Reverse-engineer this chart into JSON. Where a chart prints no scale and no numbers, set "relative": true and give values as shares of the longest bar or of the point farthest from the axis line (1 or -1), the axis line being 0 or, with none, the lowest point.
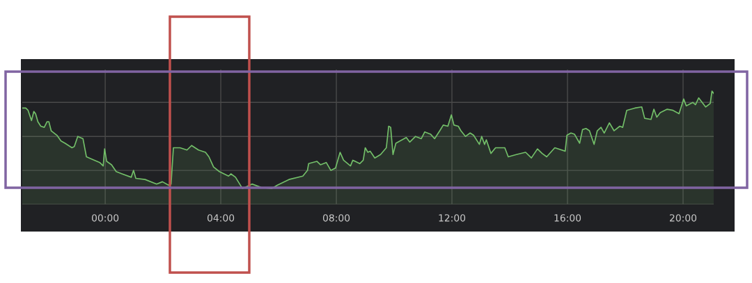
{
  "chart_data": {
    "type": "area",
    "relative": true,
    "grid": true,
    "tick_labels": "x",
    "xlim": [
      -2.87,
      21.06
    ],
    "xticks": [
      {
        "value": 0,
        "label": "00:00"
      },
      {
        "value": 4,
        "label": "04:00"
      },
      {
        "value": 8,
        "label": "08:00"
      },
      {
        "value": 12,
        "label": "12:00"
      },
      {
        "value": 16,
        "label": "16:00"
      },
      {
        "value": 20,
        "label": "20:00"
      }
    ],
    "x": [
      -2.87,
      -2.75,
      -2.67,
      -2.55,
      -2.47,
      -2.41,
      -2.33,
      -2.23,
      -2.11,
      -2.01,
      -1.95,
      -1.87,
      -1.67,
      -1.53,
      -1.39,
      -1.15,
      -1.07,
      -0.95,
      -0.77,
      -0.65,
      -0.47,
      -0.19,
      -0.07,
      -0.02,
      0.05,
      0.22,
      0.38,
      0.58,
      0.9,
      0.98,
      1.06,
      1.38,
      1.78,
      1.98,
      2.19,
      2.28,
      2.36,
      2.59,
      2.83,
      2.99,
      3.23,
      3.47,
      3.59,
      3.75,
      3.95,
      4.27,
      4.35,
      4.51,
      4.75,
      5.08,
      5.4,
      5.76,
      5.96,
      6.36,
      6.84,
      7.0,
      7.04,
      7.33,
      7.45,
      7.65,
      7.81,
      7.97,
      8.13,
      8.25,
      8.49,
      8.57,
      8.81,
      8.93,
      9.0,
      9.09,
      9.17,
      9.25,
      9.33,
      9.53,
      9.73,
      9.81,
      9.88,
      9.96,
      10.06,
      10.42,
      10.54,
      10.74,
      10.94,
      11.06,
      11.26,
      11.4,
      11.58,
      11.7,
      11.86,
      11.98,
      12.07,
      12.22,
      12.31,
      12.47,
      12.63,
      12.75,
      12.95,
      13.03,
      13.13,
      13.19,
      13.35,
      13.51,
      13.83,
      13.95,
      14.23,
      14.55,
      14.75,
      14.96,
      15.12,
      15.28,
      15.56,
      15.92,
      15.98,
      16.12,
      16.24,
      16.42,
      16.52,
      16.64,
      16.76,
      16.92,
      17.03,
      17.16,
      17.27,
      17.45,
      17.61,
      17.81,
      17.91,
      18.05,
      18.33,
      18.57,
      18.67,
      18.89,
      18.99,
      19.09,
      19.21,
      19.45,
      19.65,
      19.86,
      20.02,
      20.11,
      20.34,
      20.43,
      20.54,
      20.78,
      20.94,
      21.0,
      21.06
    ],
    "series": [
      {
        "color": "#73bf69",
        "values": [
          0.85,
          0.85,
          0.83,
          0.74,
          0.82,
          0.8,
          0.73,
          0.69,
          0.68,
          0.73,
          0.73,
          0.65,
          0.61,
          0.56,
          0.54,
          0.5,
          0.51,
          0.6,
          0.58,
          0.42,
          0.4,
          0.37,
          0.34,
          0.49,
          0.38,
          0.35,
          0.29,
          0.27,
          0.24,
          0.3,
          0.23,
          0.22,
          0.18,
          0.2,
          0.17,
          0.18,
          0.5,
          0.5,
          0.48,
          0.52,
          0.48,
          0.46,
          0.42,
          0.33,
          0.29,
          0.25,
          0.27,
          0.24,
          0.14,
          0.18,
          0.15,
          0.14,
          0.17,
          0.22,
          0.25,
          0.3,
          0.36,
          0.38,
          0.35,
          0.37,
          0.3,
          0.32,
          0.46,
          0.39,
          0.34,
          0.39,
          0.36,
          0.39,
          0.5,
          0.46,
          0.47,
          0.44,
          0.41,
          0.44,
          0.5,
          0.69,
          0.68,
          0.44,
          0.54,
          0.59,
          0.55,
          0.6,
          0.58,
          0.64,
          0.62,
          0.58,
          0.65,
          0.7,
          0.69,
          0.79,
          0.7,
          0.69,
          0.65,
          0.6,
          0.63,
          0.61,
          0.53,
          0.6,
          0.53,
          0.57,
          0.45,
          0.5,
          0.5,
          0.42,
          0.44,
          0.46,
          0.41,
          0.49,
          0.45,
          0.42,
          0.5,
          0.47,
          0.61,
          0.63,
          0.62,
          0.54,
          0.66,
          0.67,
          0.65,
          0.53,
          0.65,
          0.68,
          0.63,
          0.72,
          0.65,
          0.69,
          0.68,
          0.83,
          0.85,
          0.86,
          0.76,
          0.75,
          0.84,
          0.77,
          0.81,
          0.84,
          0.83,
          0.8,
          0.93,
          0.87,
          0.9,
          0.88,
          0.94,
          0.86,
          0.89,
          1.0,
          0.98
        ]
      }
    ]
  }
}
